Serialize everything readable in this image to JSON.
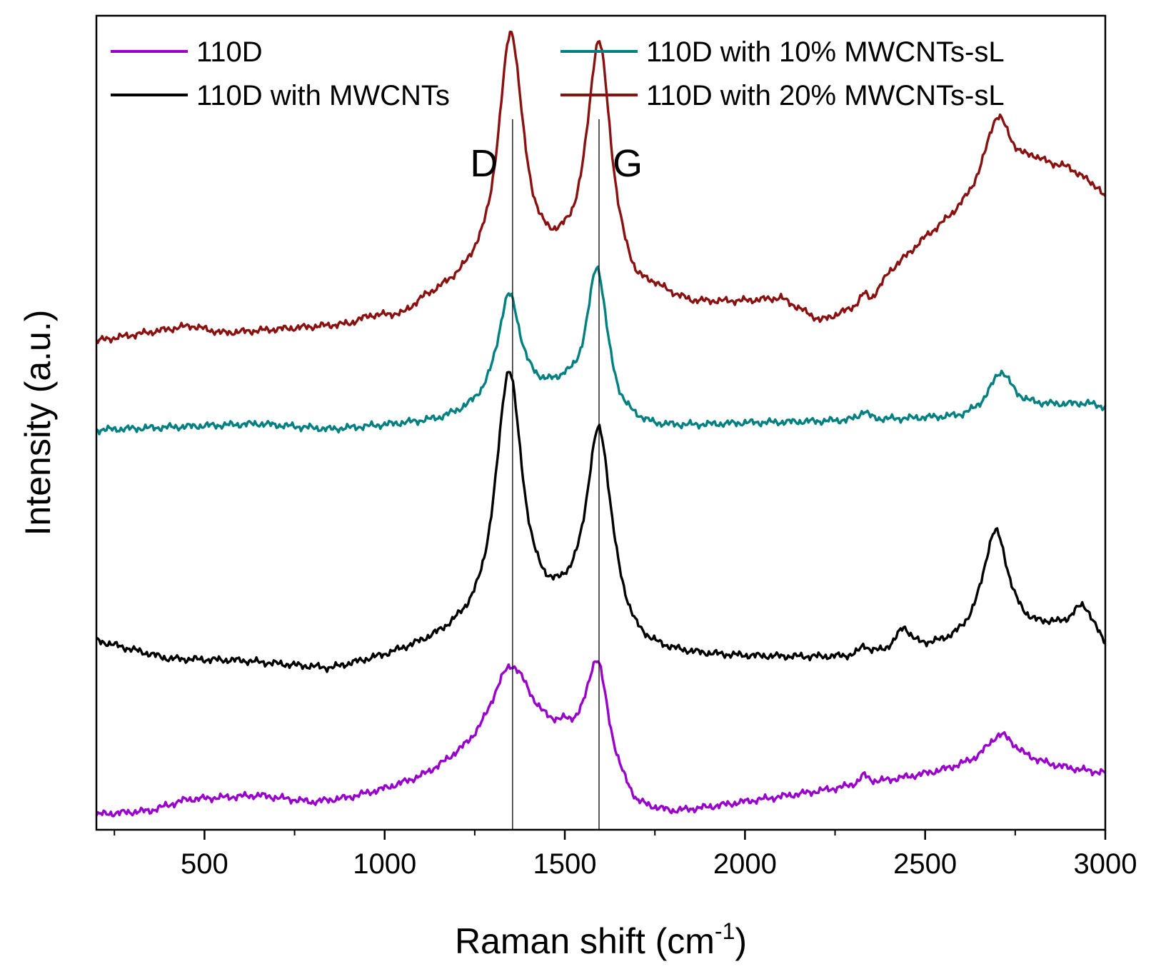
{
  "chart_data": {
    "type": "line",
    "title": "",
    "xlabel": "Raman shift (cm",
    "xlabel_sup": "-1",
    "xlabel_close": ")",
    "ylabel": "Intensity (a.u.)",
    "xlim": [
      200,
      3000
    ],
    "ylim": [
      0,
      11
    ],
    "y_ticks_shown": false,
    "x_ticks": [
      500,
      1000,
      1500,
      2000,
      2500,
      3000
    ],
    "x_tick_labels": [
      "500",
      "1000",
      "1500",
      "2000",
      "2500",
      "3000"
    ],
    "legend_position": "top",
    "peak_markers": [
      {
        "label": "D",
        "x": 1355
      },
      {
        "label": "G",
        "x": 1595
      }
    ],
    "series": [
      {
        "name": "110D",
        "color": "#9900cc",
        "offset": 0.2,
        "baseline": [
          [
            200,
            0.0
          ],
          [
            350,
            0.05
          ],
          [
            450,
            0.2
          ],
          [
            650,
            0.25
          ],
          [
            800,
            0.15
          ],
          [
            900,
            0.2
          ],
          [
            1000,
            0.3
          ],
          [
            1100,
            0.42
          ],
          [
            1200,
            0.6
          ],
          [
            1500,
            0.85
          ],
          [
            1600,
            0.5
          ],
          [
            1700,
            0.0
          ],
          [
            1800,
            -0.02
          ],
          [
            2000,
            0.15
          ],
          [
            2200,
            0.3
          ],
          [
            2400,
            0.45
          ],
          [
            2600,
            0.6
          ],
          [
            2800,
            0.65
          ],
          [
            3000,
            0.55
          ]
        ],
        "peaks": [
          {
            "center": 1350,
            "amp": 1.25,
            "width": 75
          },
          {
            "center": 1590,
            "amp": 1.45,
            "width": 38
          },
          {
            "center": 2330,
            "amp": 0.12,
            "width": 15
          },
          {
            "center": 2710,
            "amp": 0.45,
            "width": 55
          }
        ]
      },
      {
        "name": "110D with MWCNTs",
        "color": "#000000",
        "offset": 2.3,
        "baseline": [
          [
            200,
            0.25
          ],
          [
            400,
            0.0
          ],
          [
            600,
            -0.03
          ],
          [
            850,
            -0.15
          ],
          [
            1000,
            0.0
          ],
          [
            1200,
            0.25
          ],
          [
            1500,
            0.4
          ],
          [
            1650,
            0.1
          ],
          [
            1700,
            0.0
          ],
          [
            2000,
            0.0
          ],
          [
            2300,
            0.0
          ],
          [
            2600,
            0.15
          ],
          [
            2850,
            0.3
          ],
          [
            3000,
            0.0
          ]
        ],
        "peaks": [
          {
            "center": 1345,
            "amp": 3.5,
            "width": 45
          },
          {
            "center": 1595,
            "amp": 2.8,
            "width": 45
          },
          {
            "center": 2330,
            "amp": 0.12,
            "width": 15
          },
          {
            "center": 2440,
            "amp": 0.3,
            "width": 25
          },
          {
            "center": 2695,
            "amp": 1.5,
            "width": 45
          },
          {
            "center": 2940,
            "amp": 0.55,
            "width": 45
          }
        ]
      },
      {
        "name": "110D with 10% MWCNTs-sL",
        "color": "#008080",
        "offset": 5.4,
        "baseline": [
          [
            200,
            0.0
          ],
          [
            650,
            0.08
          ],
          [
            850,
            0.0
          ],
          [
            1150,
            0.1
          ],
          [
            1250,
            0.2
          ],
          [
            1500,
            0.45
          ],
          [
            1650,
            0.05
          ],
          [
            1750,
            0.0
          ],
          [
            2000,
            0.08
          ],
          [
            2500,
            0.15
          ],
          [
            2600,
            0.15
          ],
          [
            2800,
            0.3
          ],
          [
            2950,
            0.35
          ],
          [
            3000,
            0.3
          ]
        ],
        "peaks": [
          {
            "center": 1345,
            "amp": 1.5,
            "width": 40
          },
          {
            "center": 1590,
            "amp": 1.95,
            "width": 35
          },
          {
            "center": 2330,
            "amp": 0.12,
            "width": 15
          },
          {
            "center": 2710,
            "amp": 0.55,
            "width": 40
          }
        ]
      },
      {
        "name": "110D with 20% MWCNTs-sL",
        "color": "#8b1010",
        "offset": 6.6,
        "baseline": [
          [
            200,
            0.0
          ],
          [
            460,
            0.2
          ],
          [
            550,
            0.1
          ],
          [
            900,
            0.2
          ],
          [
            960,
            0.3
          ],
          [
            1050,
            0.3
          ],
          [
            1110,
            0.5
          ],
          [
            1250,
            0.75
          ],
          [
            1500,
            0.85
          ],
          [
            1700,
            0.45
          ],
          [
            1750,
            0.55
          ],
          [
            1850,
            0.45
          ],
          [
            2000,
            0.5
          ],
          [
            2100,
            0.55
          ],
          [
            2210,
            0.25
          ],
          [
            2350,
            0.5
          ],
          [
            2400,
            0.9
          ],
          [
            2500,
            1.35
          ],
          [
            2600,
            1.7
          ],
          [
            2800,
            2.35
          ],
          [
            2900,
            2.3
          ],
          [
            2980,
            2.05
          ],
          [
            3000,
            1.9
          ]
        ],
        "peaks": [
          {
            "center": 1350,
            "amp": 3.3,
            "width": 42
          },
          {
            "center": 1595,
            "amp": 3.3,
            "width": 42
          },
          {
            "center": 2330,
            "amp": 0.15,
            "width": 15
          },
          {
            "center": 2700,
            "amp": 1.0,
            "width": 45
          }
        ]
      }
    ]
  }
}
